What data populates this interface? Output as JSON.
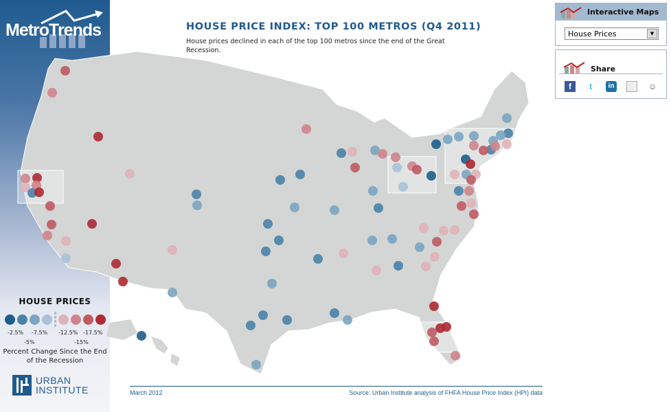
{
  "brand": {
    "name": "MetroTrends",
    "org_line1": "URBAN",
    "org_line2": "INSTITUTE"
  },
  "header": {
    "title": "HOUSE PRICE INDEX: TOP 100 METROS (Q4 2011)",
    "subtitle": "House prices declined in each of the top 100 metros since the end of the Great Recession."
  },
  "legend": {
    "title": "HOUSE PRICES",
    "ticks_top": [
      "-2.5%",
      "-7.5%",
      "-12.5%",
      "-17.5%"
    ],
    "ticks_bottom": [
      "-5%",
      "-15%"
    ],
    "caption": "Percent Change Since the End of the Recession",
    "colors": [
      "#1d5f8a",
      "#4a82a8",
      "#7ba5c1",
      "#a9c2d6",
      "#e0b2b8",
      "#cf848b",
      "#c05a63",
      "#ad2a33"
    ]
  },
  "panels": {
    "maps_title": "Interactive Maps",
    "select_value": "House Prices",
    "share_title": "Share",
    "share_icons": [
      "facebook-icon",
      "twitter-icon",
      "linkedin-icon",
      "delicious-icon",
      "reddit-icon"
    ]
  },
  "footer": {
    "date": "March 2012",
    "source": "Source: Urban Institute analysis of FHFA House Price Index (HPI) data"
  }
}
